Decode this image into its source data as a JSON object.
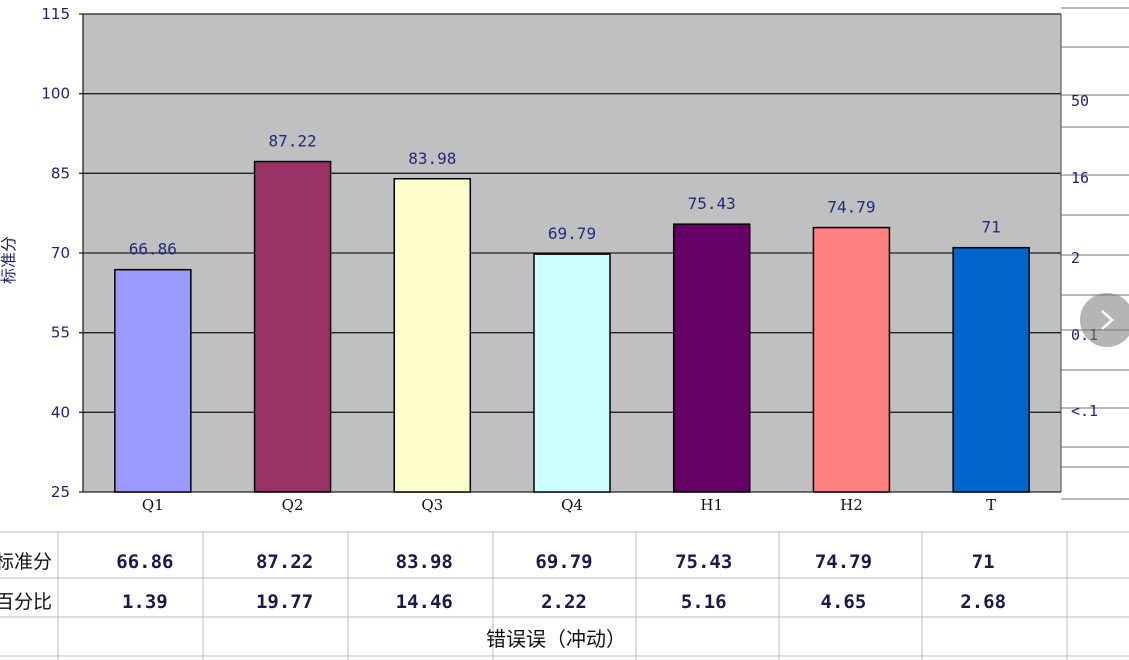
{
  "chart_data": {
    "type": "bar",
    "categories": [
      "Q1",
      "Q2",
      "Q3",
      "Q4",
      "H1",
      "H2",
      "T"
    ],
    "values": [
      66.86,
      87.22,
      83.98,
      69.79,
      75.43,
      74.79,
      71
    ],
    "value_labels": [
      "66.86",
      "87.22",
      "83.98",
      "69.79",
      "75.43",
      "74.79",
      "71"
    ],
    "bar_colors": [
      "#9999ff",
      "#993366",
      "#ffffcc",
      "#ccffff",
      "#660066",
      "#ff8080",
      "#0066cc"
    ],
    "ylim": [
      25,
      115
    ],
    "yticks": [
      25,
      40,
      55,
      70,
      85,
      100,
      115
    ],
    "ylabel": "标准分",
    "right_ticks": [
      "50",
      "16",
      "2",
      "0.1",
      "<.1"
    ],
    "background": "#c0c0c0",
    "grid": true
  },
  "table": {
    "rows": [
      {
        "label": "标准分",
        "values": [
          "66.86",
          "87.22",
          "83.98",
          "69.79",
          "75.43",
          "74.79",
          "71"
        ]
      },
      {
        "label": "百分比",
        "values": [
          "1.39",
          "19.77",
          "14.46",
          "2.22",
          "5.16",
          "4.65",
          "2.68"
        ]
      }
    ],
    "footer": "错误误（冲动）"
  },
  "nav": {
    "next_icon": "chevron-right-icon"
  }
}
